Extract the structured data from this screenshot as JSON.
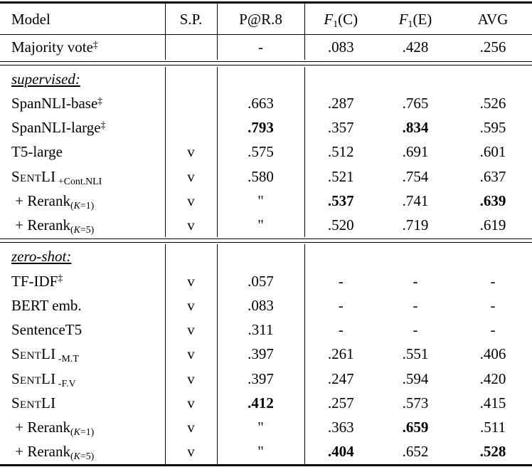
{
  "colors": {
    "text": "#000000",
    "background": "#ffffff",
    "rule": "#000000"
  },
  "table": {
    "columns": [
      {
        "name": "model",
        "segments": [
          {
            "t": "Model"
          }
        ]
      },
      {
        "name": "sp",
        "segments": [
          {
            "t": "S.P."
          }
        ]
      },
      {
        "name": "par8",
        "segments": [
          {
            "t": "P@R.8"
          }
        ]
      },
      {
        "name": "f1c",
        "segments": [
          {
            "t": "F",
            "it": true
          },
          {
            "t": "1",
            "sub": true
          },
          {
            "t": "(C)"
          }
        ]
      },
      {
        "name": "f1e",
        "segments": [
          {
            "t": "F",
            "it": true
          },
          {
            "t": "1",
            "sub": true
          },
          {
            "t": "(E)"
          }
        ]
      },
      {
        "name": "avg",
        "segments": [
          {
            "t": "AVG"
          }
        ]
      }
    ],
    "rows": [
      {
        "kind": "data",
        "model": [
          {
            "t": "Majority vote"
          },
          {
            "t": "‡",
            "sup": true
          }
        ],
        "sp": "",
        "vals": [
          "-",
          ".083",
          ".428",
          ".256"
        ],
        "bold": [
          false,
          false,
          false,
          false
        ]
      },
      {
        "kind": "rule",
        "style": "double"
      },
      {
        "kind": "section",
        "model": [
          {
            "t": "supervised:",
            "it": true,
            "ul": true
          }
        ],
        "sp": "",
        "vals": [
          "",
          "",
          "",
          ""
        ]
      },
      {
        "kind": "data",
        "model": [
          {
            "t": "SpanNLI-base"
          },
          {
            "t": "‡",
            "sup": true
          }
        ],
        "sp": "",
        "vals": [
          ".663",
          ".287",
          ".765",
          ".526"
        ],
        "bold": [
          false,
          false,
          false,
          false
        ]
      },
      {
        "kind": "data",
        "model": [
          {
            "t": "SpanNLI-large"
          },
          {
            "t": "‡",
            "sup": true
          }
        ],
        "sp": "",
        "vals": [
          ".793",
          ".357",
          ".834",
          ".595"
        ],
        "bold": [
          true,
          false,
          true,
          false
        ]
      },
      {
        "kind": "data",
        "model": [
          {
            "t": "T5-large"
          }
        ],
        "sp": "v",
        "vals": [
          ".575",
          ".512",
          ".691",
          ".601"
        ],
        "bold": [
          false,
          false,
          false,
          false
        ]
      },
      {
        "kind": "data",
        "model": [
          {
            "t": "SentLI",
            "sc": true
          },
          {
            "t": " +Cont.NLI",
            "sub": true
          }
        ],
        "sp": "v",
        "vals": [
          ".580",
          ".521",
          ".754",
          ".637"
        ],
        "bold": [
          false,
          false,
          false,
          false
        ]
      },
      {
        "kind": "data",
        "model": [
          {
            "t": " + Rerank"
          },
          {
            "t": "(",
            "sub": true
          },
          {
            "t": "K",
            "sub": true,
            "it": true
          },
          {
            "t": "=1)",
            "sub": true
          }
        ],
        "sp": "v",
        "vals": [
          "\"",
          ".537",
          ".741",
          ".639"
        ],
        "bold": [
          false,
          true,
          false,
          true
        ]
      },
      {
        "kind": "data",
        "model": [
          {
            "t": " + Rerank"
          },
          {
            "t": "(",
            "sub": true
          },
          {
            "t": "K",
            "sub": true,
            "it": true
          },
          {
            "t": "=5)",
            "sub": true
          }
        ],
        "sp": "v",
        "vals": [
          "\"",
          ".520",
          ".719",
          ".619"
        ],
        "bold": [
          false,
          false,
          false,
          false
        ]
      },
      {
        "kind": "rule",
        "style": "double"
      },
      {
        "kind": "section",
        "model": [
          {
            "t": "zero-shot:",
            "it": true,
            "ul": true
          }
        ],
        "sp": "",
        "vals": [
          "",
          "",
          "",
          ""
        ]
      },
      {
        "kind": "data",
        "model": [
          {
            "t": "TF-IDF"
          },
          {
            "t": "‡",
            "sup": true
          }
        ],
        "sp": "v",
        "vals": [
          ".057",
          "-",
          "-",
          "-"
        ],
        "bold": [
          false,
          false,
          false,
          false
        ]
      },
      {
        "kind": "data",
        "model": [
          {
            "t": "BERT emb."
          }
        ],
        "sp": "v",
        "vals": [
          ".083",
          "-",
          "-",
          "-"
        ],
        "bold": [
          false,
          false,
          false,
          false
        ]
      },
      {
        "kind": "data",
        "model": [
          {
            "t": "SentenceT5"
          }
        ],
        "sp": "v",
        "vals": [
          ".311",
          "-",
          "-",
          "-"
        ],
        "bold": [
          false,
          false,
          false,
          false
        ]
      },
      {
        "kind": "data",
        "model": [
          {
            "t": "SentLI",
            "sc": true
          },
          {
            "t": " -M.T",
            "sub": true
          }
        ],
        "sp": "v",
        "vals": [
          ".397",
          ".261",
          ".551",
          ".406"
        ],
        "bold": [
          false,
          false,
          false,
          false
        ]
      },
      {
        "kind": "data",
        "model": [
          {
            "t": "SentLI",
            "sc": true
          },
          {
            "t": " -F.V",
            "sub": true
          }
        ],
        "sp": "v",
        "vals": [
          ".397",
          ".247",
          ".594",
          ".420"
        ],
        "bold": [
          false,
          false,
          false,
          false
        ]
      },
      {
        "kind": "data",
        "model": [
          {
            "t": "SentLI",
            "sc": true
          }
        ],
        "sp": "v",
        "vals": [
          ".412",
          ".257",
          ".573",
          ".415"
        ],
        "bold": [
          true,
          false,
          false,
          false
        ]
      },
      {
        "kind": "data",
        "model": [
          {
            "t": " + Rerank"
          },
          {
            "t": "(",
            "sub": true
          },
          {
            "t": "K",
            "sub": true,
            "it": true
          },
          {
            "t": "=1)",
            "sub": true
          }
        ],
        "sp": "v",
        "vals": [
          "\"",
          ".363",
          ".659",
          ".511"
        ],
        "bold": [
          false,
          false,
          true,
          false
        ]
      },
      {
        "kind": "data",
        "model": [
          {
            "t": " + Rerank"
          },
          {
            "t": "(",
            "sub": true
          },
          {
            "t": "K",
            "sub": true,
            "it": true
          },
          {
            "t": "=5)",
            "sub": true
          }
        ],
        "sp": "v",
        "vals": [
          "\"",
          ".404",
          ".652",
          ".528"
        ],
        "bold": [
          false,
          true,
          false,
          true
        ]
      }
    ]
  }
}
